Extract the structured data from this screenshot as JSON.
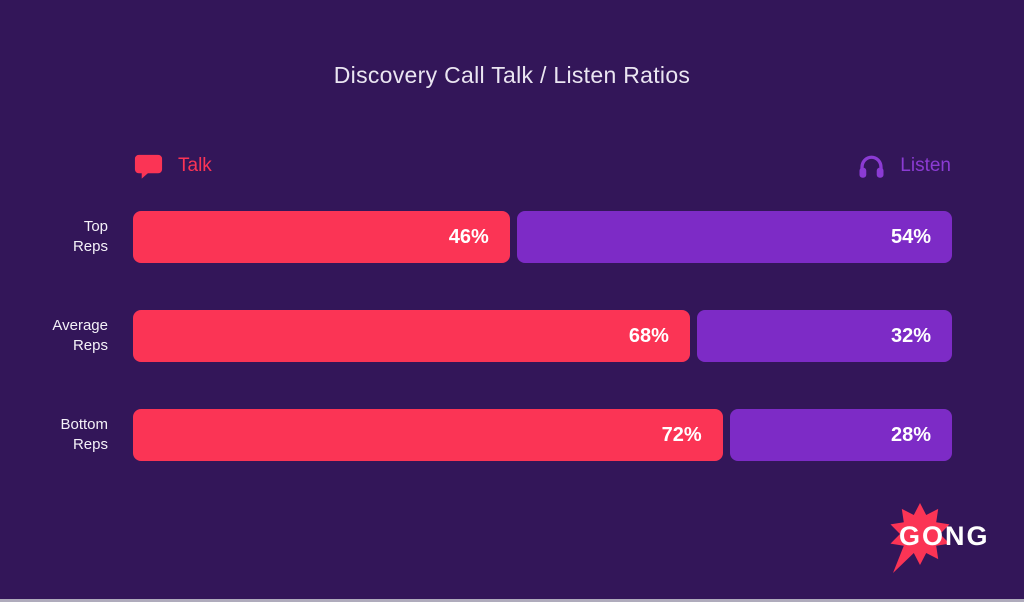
{
  "title": "Discovery Call Talk / Listen Ratios",
  "colors": {
    "background": "#331659",
    "talk": "#FB3455",
    "listen_bar": "#7D2BC6",
    "listen_legend": "#8B3BD3",
    "value_text": "#FFFFFF",
    "bottom_strip": "#AFABBC"
  },
  "legend": {
    "talk_label": "Talk",
    "talk_icon": "speech-bubble-icon",
    "listen_label": "Listen",
    "listen_icon": "headphones-icon"
  },
  "chart_data": {
    "type": "bar",
    "orientation": "horizontal",
    "stacked": true,
    "title": "Discovery Call Talk / Listen Ratios",
    "categories": [
      "Top Reps",
      "Average Reps",
      "Bottom Reps"
    ],
    "category_label_lines": [
      [
        "Top",
        "Reps"
      ],
      [
        "Average",
        "Reps"
      ],
      [
        "Bottom",
        "Reps"
      ]
    ],
    "series": [
      {
        "name": "Talk",
        "color": "#FB3455",
        "values": [
          46,
          68,
          72
        ]
      },
      {
        "name": "Listen",
        "color": "#7D2BC6",
        "values": [
          54,
          32,
          28
        ]
      }
    ],
    "value_suffix": "%",
    "xlim": [
      0,
      100
    ],
    "grid": false,
    "legend_position": "top"
  },
  "logo": {
    "text": "GONG",
    "burst_color": "#FB3455",
    "text_color": "#FFFFFF"
  }
}
